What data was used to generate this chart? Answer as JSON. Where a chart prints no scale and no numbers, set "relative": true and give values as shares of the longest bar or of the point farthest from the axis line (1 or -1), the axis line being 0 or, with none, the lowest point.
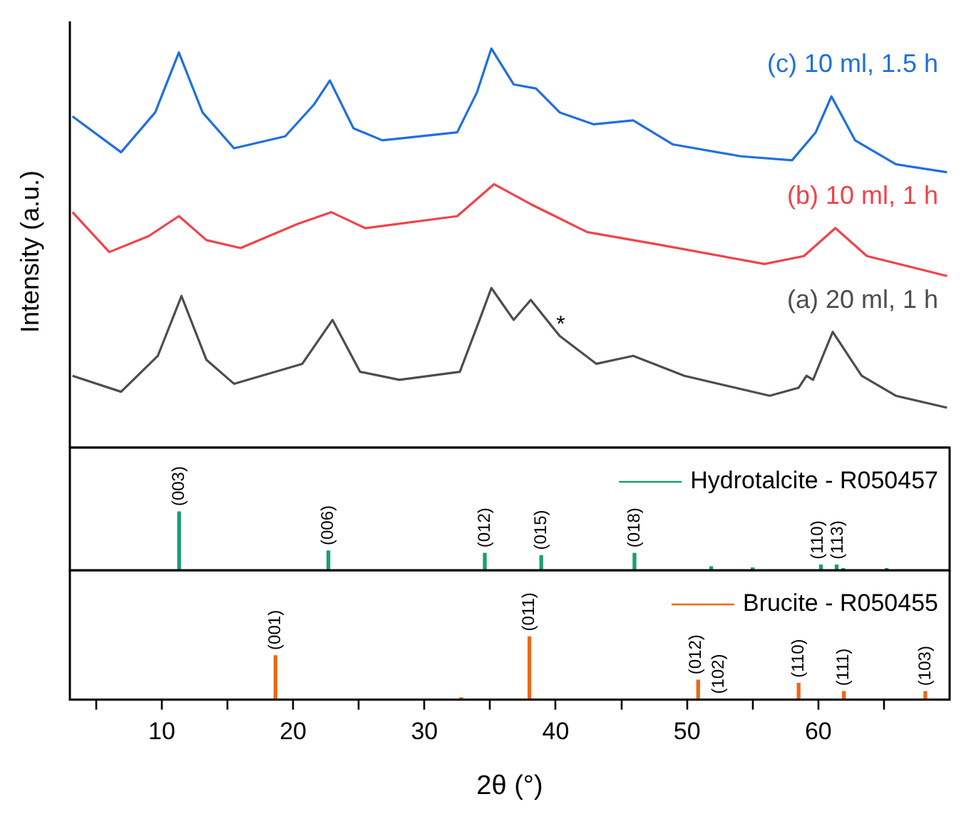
{
  "chart_data": [
    {
      "type": "line",
      "relative": true,
      "ylabel": "Intensity (a.u.)",
      "xlim": [
        3,
        70
      ],
      "tick_labels": false,
      "annotations": [
        "*"
      ],
      "series": [
        {
          "name": "(c) 10 ml, 1.5 h",
          "color": "#1f6fe0",
          "x": [
            3.2,
            6.9,
            9.5,
            11.3,
            13.1,
            15.5,
            19.4,
            21.6,
            22.8,
            24.6,
            26.8,
            32.5,
            34.0,
            35.1,
            36.8,
            38.5,
            40.3,
            42.9,
            45.9,
            48.9,
            54.1,
            58.0,
            59.8,
            61.0,
            62.8,
            65.9,
            69.8
          ],
          "values": [
            0.83,
            0.74,
            0.84,
            0.99,
            0.84,
            0.75,
            0.78,
            0.86,
            0.92,
            0.8,
            0.77,
            0.79,
            0.89,
            1.0,
            0.91,
            0.9,
            0.84,
            0.81,
            0.82,
            0.76,
            0.73,
            0.72,
            0.79,
            0.88,
            0.77,
            0.71,
            0.69
          ]
        },
        {
          "name": "(b) 10 ml, 1 h",
          "color": "#f0434b",
          "x": [
            3.2,
            6.0,
            9.0,
            11.3,
            13.4,
            16.0,
            20.3,
            22.9,
            25.5,
            32.5,
            35.3,
            38.1,
            42.4,
            47.6,
            55.9,
            58.9,
            61.3,
            63.7,
            69.8
          ],
          "values": [
            0.59,
            0.49,
            0.53,
            0.58,
            0.52,
            0.5,
            0.56,
            0.59,
            0.55,
            0.58,
            0.66,
            0.61,
            0.54,
            0.51,
            0.46,
            0.48,
            0.55,
            0.48,
            0.43
          ]
        },
        {
          "name": "(a) 20 ml, 1 h",
          "color": "#4d4d4d",
          "x": [
            3.2,
            6.9,
            9.7,
            11.5,
            13.4,
            15.5,
            20.7,
            23.0,
            25.1,
            28.1,
            32.7,
            34.2,
            35.1,
            36.8,
            38.1,
            40.3,
            43.1,
            45.9,
            49.8,
            56.3,
            58.5,
            59.1,
            59.6,
            61.1,
            63.3,
            65.9,
            69.8
          ],
          "values": [
            0.18,
            0.14,
            0.23,
            0.38,
            0.22,
            0.16,
            0.21,
            0.32,
            0.19,
            0.17,
            0.19,
            0.32,
            0.4,
            0.32,
            0.37,
            0.28,
            0.21,
            0.23,
            0.18,
            0.13,
            0.15,
            0.18,
            0.17,
            0.29,
            0.18,
            0.13,
            0.1
          ]
        }
      ]
    },
    {
      "type": "bar",
      "relative": true,
      "xlim": [
        3,
        70
      ],
      "tick_labels": false,
      "legend": "top right",
      "annotations": [
        {
          "text": "(003)",
          "x": 11.32,
          "y": 1.0
        },
        {
          "text": "(006)",
          "x": 22.69,
          "y": 0.33
        },
        {
          "text": "(012)",
          "x": 34.6,
          "y": 0.29
        },
        {
          "text": "(015)",
          "x": 38.9,
          "y": 0.25
        },
        {
          "text": "(018)",
          "x": 46.0,
          "y": 0.29
        },
        {
          "text": "(110)",
          "x": 60.0,
          "y": 0.09
        },
        {
          "text": "(113)",
          "x": 61.5,
          "y": 0.09
        }
      ],
      "series": [
        {
          "name": "Hydrotalcite - R050457",
          "color": "#1a9e78",
          "x": [
            11.32,
            22.69,
            34.6,
            38.9,
            46.0,
            51.84,
            55.0,
            60.2,
            61.4,
            61.9,
            65.2
          ],
          "values": [
            1.0,
            0.33,
            0.29,
            0.25,
            0.29,
            0.06,
            0.04,
            0.09,
            0.09,
            0.03,
            0.03
          ]
        }
      ]
    },
    {
      "type": "bar",
      "relative": true,
      "xlabel": "2θ (°)",
      "xlim": [
        3,
        70
      ],
      "tick_labels": "x",
      "legend": "top right",
      "xticks": [
        {
          "value": 5,
          "label": null
        },
        10,
        {
          "value": 15,
          "label": null
        },
        20,
        {
          "value": 25,
          "label": null
        },
        30,
        {
          "value": 35,
          "label": null
        },
        40,
        {
          "value": 45,
          "label": null
        },
        50,
        {
          "value": 55,
          "label": null
        },
        60,
        {
          "value": 65,
          "label": null
        }
      ],
      "annotations": [
        {
          "text": "(001)",
          "x": 18.66,
          "y": 0.7
        },
        {
          "text": "(011)",
          "x": 38.0,
          "y": 1.0
        },
        {
          "text": "(012)",
          "x": 50.7,
          "y": 0.31
        },
        "(102)",
        {
          "text": "(110)",
          "x": 58.5,
          "y": 0.26
        },
        {
          "text": "(111)",
          "x": 61.95,
          "y": 0.13
        },
        {
          "text": "(103)",
          "x": 68.15,
          "y": 0.13
        }
      ],
      "series": [
        {
          "name": "Brucite - R050455",
          "color": "#e86a1a",
          "x": [
            18.66,
            32.8,
            38.0,
            50.85,
            58.5,
            61.95,
            68.15
          ],
          "values": [
            0.7,
            0.03,
            1.0,
            0.31,
            0.26,
            0.13,
            0.13
          ]
        }
      ]
    }
  ]
}
